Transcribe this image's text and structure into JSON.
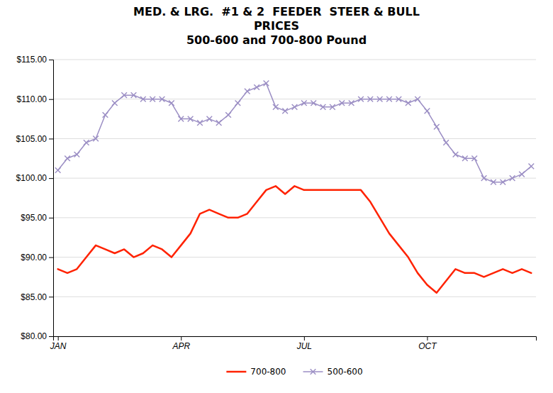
{
  "chart_data": {
    "type": "line",
    "title": "MED. & LRG.  #1 & 2  FEEDER  STEER & BULL\nPRICES\n500-600 and 700-800 Pound",
    "categories": [
      "JAN",
      null,
      null,
      null,
      null,
      null,
      null,
      null,
      null,
      null,
      null,
      null,
      null,
      "APR",
      null,
      null,
      null,
      null,
      null,
      null,
      null,
      null,
      null,
      null,
      null,
      null,
      "JUL",
      null,
      null,
      null,
      null,
      null,
      null,
      null,
      null,
      null,
      null,
      null,
      null,
      "OCT",
      null,
      null,
      null,
      null,
      null,
      null,
      null,
      null,
      null,
      null,
      null
    ],
    "series": [
      {
        "name": "700-800",
        "color": "#FF2200",
        "marker": "none",
        "values": [
          88.5,
          88.0,
          88.5,
          90.0,
          91.5,
          91.0,
          90.5,
          91.0,
          90.0,
          90.5,
          91.5,
          91.0,
          90.0,
          91.5,
          93.0,
          95.5,
          96.0,
          95.5,
          95.0,
          95.0,
          95.5,
          97.0,
          98.5,
          99.0,
          98.0,
          99.0,
          98.5,
          98.5,
          98.5,
          98.5,
          98.5,
          98.5,
          98.5,
          97.0,
          95.0,
          93.0,
          91.5,
          90.0,
          88.0,
          86.5,
          85.5,
          87.0,
          88.5,
          88.0,
          88.0,
          87.5,
          88.0,
          88.5,
          88.0,
          88.5,
          88.0
        ]
      },
      {
        "name": "500-600",
        "color": "#9B8EC4",
        "marker": "x",
        "values": [
          101.0,
          102.5,
          103.0,
          104.5,
          105.0,
          108.0,
          109.5,
          110.5,
          110.5,
          110.0,
          110.0,
          110.0,
          109.5,
          107.5,
          107.5,
          107.0,
          107.5,
          107.0,
          108.0,
          109.5,
          111.0,
          111.5,
          112.0,
          109.0,
          108.5,
          109.0,
          109.5,
          109.5,
          109.0,
          109.0,
          109.5,
          109.5,
          110.0,
          110.0,
          110.0,
          110.0,
          110.0,
          109.5,
          110.0,
          108.5,
          106.5,
          104.5,
          103.0,
          102.5,
          102.5,
          100.0,
          99.5,
          99.5,
          100.0,
          100.5,
          101.5
        ]
      }
    ],
    "ylim": [
      80,
      115
    ],
    "yticks": [
      {
        "value": 80,
        "label": "$80.00"
      },
      {
        "value": 85,
        "label": "$85.00"
      },
      {
        "value": 90,
        "label": "$90.00"
      },
      {
        "value": 95,
        "label": "$95.00"
      },
      {
        "value": 100,
        "label": "$100.00"
      },
      {
        "value": 105,
        "label": "$105.00"
      },
      {
        "value": 110,
        "label": "$110.00"
      },
      {
        "value": 115,
        "label": "$115.00"
      }
    ],
    "grid": true,
    "legend": "bottom"
  }
}
